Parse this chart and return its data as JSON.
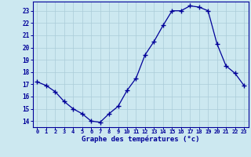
{
  "hours": [
    0,
    1,
    2,
    3,
    4,
    5,
    6,
    7,
    8,
    9,
    10,
    11,
    12,
    13,
    14,
    15,
    16,
    17,
    18,
    19,
    20,
    21,
    22,
    23
  ],
  "temps": [
    17.2,
    16.9,
    16.4,
    15.6,
    15.0,
    14.6,
    14.0,
    13.9,
    14.6,
    15.2,
    16.5,
    17.5,
    19.4,
    20.5,
    21.8,
    23.0,
    23.0,
    23.4,
    23.3,
    23.0,
    20.3,
    18.5,
    17.9,
    16.9
  ],
  "ylim": [
    13.5,
    23.75
  ],
  "yticks": [
    14,
    15,
    16,
    17,
    18,
    19,
    20,
    21,
    22,
    23
  ],
  "xticks": [
    0,
    1,
    2,
    3,
    4,
    5,
    6,
    7,
    8,
    9,
    10,
    11,
    12,
    13,
    14,
    15,
    16,
    17,
    18,
    19,
    20,
    21,
    22,
    23
  ],
  "line_color": "#000099",
  "marker_color": "#000099",
  "bg_color": "#cce8f0",
  "grid_color": "#aaccd8",
  "axis_color": "#000099",
  "xlabel": "Graphe des températures (°c)",
  "xlabel_color": "#000099",
  "tick_color": "#000099",
  "figsize": [
    3.2,
    2.0
  ],
  "dpi": 100
}
